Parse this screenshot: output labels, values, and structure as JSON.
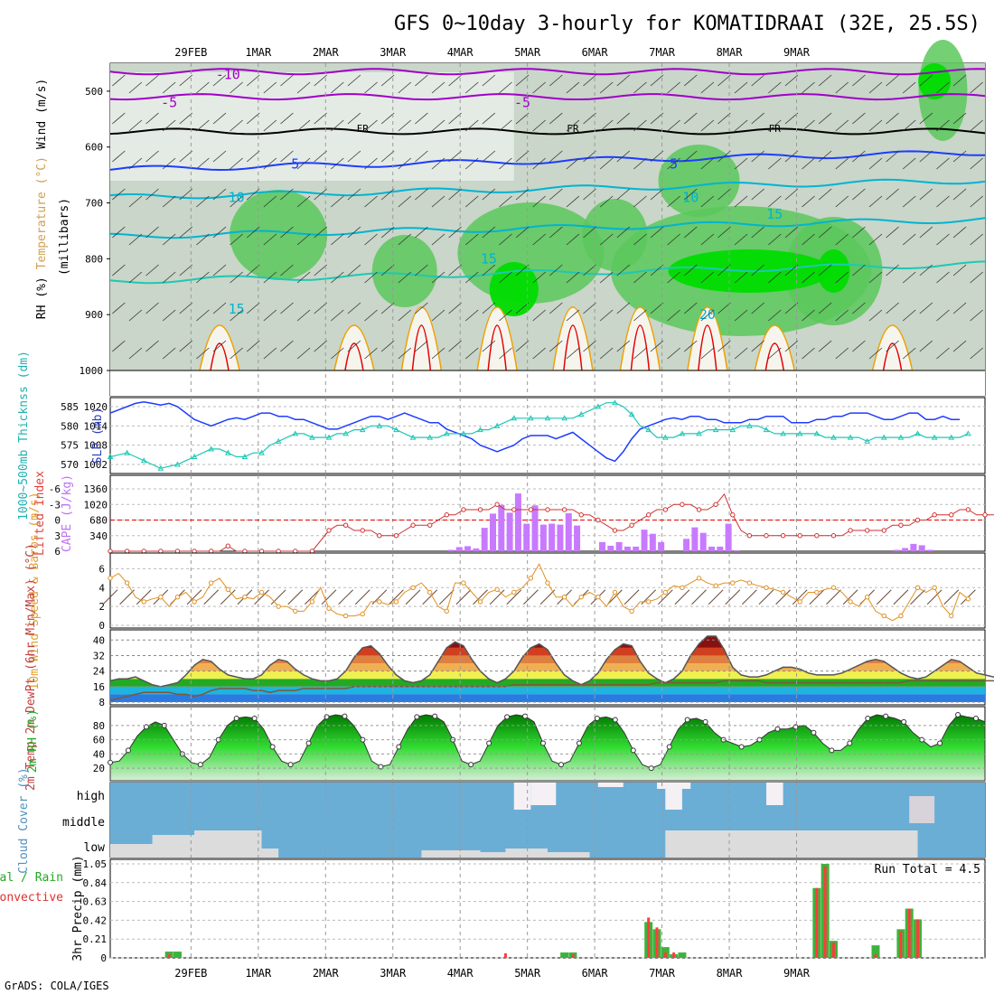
{
  "title": "GFS 0~10day 3-hourly for KOMATIDRAAI (32E, 25.5S)",
  "footer": "GrADS: COLA/IGES",
  "colors": {
    "purple": "#a000c8",
    "black": "#000000",
    "blue": "#1e3cff",
    "cyan": "#00b4d2",
    "teal": "#1ec8b4",
    "green": "#00dc00",
    "green2": "#5ac85a",
    "green3": "#00a000",
    "grey": "#b4beb4",
    "red": "#e60000",
    "orange": "#f0a000",
    "cape": "#c87aff",
    "sky": "#6aaed6",
    "cloudgrey": "#dcdcdc",
    "rain": "#3cb43c",
    "convect": "#ff3c3c",
    "dew": "#b4966e"
  },
  "chart_data": [
    {
      "type": "heatmap",
      "id": "upper-air",
      "ylabel_parts": [
        "RH (%)",
        "Temperature (°C)",
        "Wind (m/s)"
      ],
      "ylabel2": "(millibars)",
      "x_ticks": [
        "29FEB",
        "1MAR",
        "2MAR",
        "3MAR",
        "4MAR",
        "5MAR",
        "6MAR",
        "7MAR",
        "8MAR",
        "9MAR"
      ],
      "y_ticks": [
        500,
        600,
        700,
        800,
        900,
        1000
      ],
      "ylim": [
        450,
        1000
      ],
      "contour_labels": [
        {
          "text": "-10",
          "p": 470,
          "t": 14
        },
        {
          "text": "-5",
          "p": 520,
          "t": 7
        },
        {
          "text": "-5",
          "p": 520,
          "t": 49
        },
        {
          "text": "FR",
          "p": 565,
          "t": 30
        },
        {
          "text": "FR",
          "p": 565,
          "t": 55
        },
        {
          "text": "FR",
          "p": 565,
          "t": 79
        },
        {
          "text": "5",
          "p": 630,
          "t": 22
        },
        {
          "text": "5",
          "p": 630,
          "t": 67
        },
        {
          "text": "10",
          "p": 690,
          "t": 15
        },
        {
          "text": "10",
          "p": 690,
          "t": 69
        },
        {
          "text": "15",
          "p": 720,
          "t": 79
        },
        {
          "text": "15",
          "p": 800,
          "t": 45
        },
        {
          "text": "15",
          "p": 890,
          "t": 15
        },
        {
          "text": "20",
          "p": 900,
          "t": 71
        }
      ]
    },
    {
      "type": "line",
      "id": "thickness-slp",
      "ylabel": "1000~500mb Thicknss (dm)",
      "ylabel2": "SLP (mb)",
      "left_ticks": [
        570,
        575,
        580,
        585
      ],
      "right_ticks": [
        1002,
        1008,
        1014,
        1020
      ],
      "series": [
        {
          "color": "#1e3cff",
          "axis": "right",
          "values": [
            1018,
            1019,
            1020,
            1021,
            1021.5,
            1021,
            1020.5,
            1021,
            1020,
            1018,
            1016,
            1015,
            1014,
            1015,
            1016,
            1016.5,
            1016,
            1017,
            1018,
            1018,
            1017,
            1017,
            1016,
            1016,
            1015,
            1014,
            1013,
            1013,
            1014,
            1015,
            1016,
            1017,
            1017,
            1016,
            1017,
            1018,
            1017,
            1016,
            1015,
            1015,
            1013,
            1012,
            1011,
            1010,
            1008,
            1007,
            1006,
            1007,
            1008,
            1010,
            1011,
            1011,
            1011,
            1010,
            1011,
            1012,
            1010,
            1008,
            1006,
            1004,
            1003,
            1006,
            1010,
            1013,
            1014,
            1015,
            1016,
            1016.5,
            1016,
            1017,
            1017,
            1016,
            1016,
            1015,
            1015,
            1015,
            1016,
            1016,
            1017,
            1017,
            1017,
            1015,
            1015,
            1015,
            1016,
            1016,
            1017,
            1017,
            1018,
            1018,
            1018,
            1017,
            1016,
            1016,
            1017,
            1018,
            1018,
            1016,
            1016,
            1017,
            1016,
            1016
          ]
        },
        {
          "color": "#1ec8b4",
          "axis": "left",
          "values": [
            572,
            572.5,
            573,
            572,
            571,
            570,
            569,
            569.5,
            570,
            571,
            572,
            573,
            574,
            574,
            573,
            572,
            572,
            573,
            573,
            575,
            576,
            577,
            578,
            578,
            577,
            577,
            577,
            578,
            578,
            579,
            579,
            580,
            580,
            580,
            579,
            578,
            577,
            577,
            577,
            577,
            578,
            578,
            578,
            578,
            579,
            579,
            580,
            581,
            582,
            582,
            582,
            582,
            582,
            582,
            582,
            582,
            583,
            584,
            585,
            586,
            586,
            585,
            583,
            580,
            579,
            577,
            577,
            577,
            578,
            578,
            578,
            579,
            579,
            579,
            579,
            580,
            580,
            580,
            579,
            578,
            578,
            578,
            578,
            578,
            578,
            577,
            577,
            577,
            577,
            577,
            576,
            577,
            577,
            577,
            577,
            577,
            578,
            577,
            577,
            577,
            577,
            577,
            578
          ]
        }
      ]
    },
    {
      "type": "bar",
      "id": "cape-li",
      "ylabel": "Lifted Index",
      "ylabel2": "CAPE (J/kg)",
      "left_ticks": [
        6,
        3,
        0,
        -3,
        -6
      ],
      "right_ticks": [
        340,
        680,
        1020,
        1360
      ],
      "li_values": [
        6,
        6,
        6,
        6,
        6,
        6,
        6,
        6,
        6,
        6,
        6,
        6,
        6,
        6,
        5,
        6,
        6,
        6,
        6,
        6,
        6,
        6,
        6,
        6,
        6,
        4,
        2,
        1,
        1,
        2,
        2,
        2,
        3,
        3,
        3,
        2,
        1,
        1,
        1,
        0,
        -1,
        -1,
        -2,
        -2,
        -2,
        -2,
        -3,
        -2,
        -2,
        -2,
        -2,
        -2,
        -2,
        -2,
        -2,
        -2,
        -1,
        -1,
        0,
        1,
        2,
        2,
        1,
        0,
        -1,
        -2,
        -2,
        -3,
        -3,
        -3,
        -2,
        -2,
        -3,
        -5,
        -1,
        2,
        3,
        3,
        3,
        3,
        3,
        3,
        3,
        3,
        3,
        3,
        3,
        3,
        2,
        2,
        2,
        2,
        2,
        1,
        1,
        1,
        0,
        0,
        -1,
        -1,
        -1,
        -2,
        -2,
        -1,
        -1,
        -1,
        -1,
        0,
        0,
        1,
        0
      ],
      "cape_values": [
        0,
        0,
        0,
        0,
        0,
        0,
        0,
        0,
        0,
        0,
        0,
        0,
        0,
        0,
        0,
        0,
        0,
        0,
        0,
        0,
        0,
        0,
        0,
        0,
        0,
        0,
        0,
        0,
        0,
        0,
        0,
        0,
        0,
        0,
        0,
        0,
        0,
        0,
        0,
        0,
        0,
        0,
        0,
        0,
        0,
        0,
        0,
        0,
        0,
        0,
        0,
        0,
        0,
        0,
        0,
        0,
        0,
        0,
        0,
        0,
        0,
        0,
        0,
        0,
        0,
        0,
        0,
        0,
        0,
        0,
        0,
        0,
        0,
        0,
        0,
        0,
        0,
        0,
        0,
        0,
        0,
        0,
        0,
        0,
        0,
        0,
        0,
        0,
        0,
        0,
        0,
        0,
        0,
        0,
        0,
        0,
        0,
        0,
        0,
        0,
        0,
        0,
        0
      ],
      "cape_bars": [
        {
          "t": 40.5,
          "v": 30
        },
        {
          "t": 41.5,
          "v": 90
        },
        {
          "t": 42.5,
          "v": 110
        },
        {
          "t": 43.5,
          "v": 60
        },
        {
          "t": 44.5,
          "v": 510
        },
        {
          "t": 45.5,
          "v": 820
        },
        {
          "t": 46.5,
          "v": 1010
        },
        {
          "t": 47.5,
          "v": 840
        },
        {
          "t": 48.5,
          "v": 1260
        },
        {
          "t": 49.5,
          "v": 600
        },
        {
          "t": 50.5,
          "v": 1000
        },
        {
          "t": 51.5,
          "v": 580
        },
        {
          "t": 52.5,
          "v": 600
        },
        {
          "t": 53.5,
          "v": 580
        },
        {
          "t": 54.5,
          "v": 830
        },
        {
          "t": 55.5,
          "v": 560
        },
        {
          "t": 58.5,
          "v": 200
        },
        {
          "t": 59.5,
          "v": 120
        },
        {
          "t": 60.5,
          "v": 200
        },
        {
          "t": 61.5,
          "v": 100
        },
        {
          "t": 62.5,
          "v": 100
        },
        {
          "t": 63.5,
          "v": 470
        },
        {
          "t": 64.5,
          "v": 380
        },
        {
          "t": 65.5,
          "v": 200
        },
        {
          "t": 68.5,
          "v": 270
        },
        {
          "t": 69.5,
          "v": 520
        },
        {
          "t": 70.5,
          "v": 400
        },
        {
          "t": 71.5,
          "v": 100
        },
        {
          "t": 72.5,
          "v": 100
        },
        {
          "t": 73.5,
          "v": 600
        },
        {
          "t": 74.5,
          "v": 20
        },
        {
          "t": 93.5,
          "v": 30
        },
        {
          "t": 94.5,
          "v": 70
        },
        {
          "t": 95.5,
          "v": 160
        },
        {
          "t": 96.5,
          "v": 130
        },
        {
          "t": 97.5,
          "v": 30
        }
      ]
    },
    {
      "type": "line",
      "id": "wind10m",
      "ylabel": "10m Wind Speed & Barbs (m/s)",
      "left_ticks": [
        0,
        2,
        4,
        6
      ],
      "values": [
        5,
        5.5,
        4.5,
        3,
        2.5,
        2.8,
        3,
        2,
        3,
        3.5,
        2.5,
        3,
        4.5,
        5,
        3.8,
        2.8,
        3,
        2.8,
        3.5,
        3,
        2,
        2,
        1.5,
        1.5,
        2.5,
        4,
        1.8,
        1.2,
        1,
        1,
        1.2,
        2.5,
        2.5,
        2.2,
        2.5,
        3.5,
        4,
        4.5,
        3.5,
        2,
        1.5,
        4.5,
        4.5,
        3.5,
        2.5,
        3.5,
        3.8,
        3,
        3.5,
        4,
        5,
        6.5,
        4.5,
        3,
        3,
        2,
        3,
        3.5,
        3,
        2,
        3.5,
        2,
        1.5,
        2.5,
        2.5,
        2.8,
        3.5,
        4.2,
        4,
        4.5,
        5,
        4.5,
        4.2,
        4.5,
        4.5,
        4.8,
        4.5,
        4.2,
        4,
        3.8,
        3.5,
        3,
        2.5,
        3.5,
        3.5,
        3.8,
        4,
        3.5,
        2.5,
        2,
        3,
        1.5,
        1,
        0.5,
        1,
        2.5,
        4,
        3.5,
        4,
        2,
        1,
        3.5,
        2.8
      ]
    },
    {
      "type": "area",
      "id": "temp2m",
      "ylabel": "2m Temp 2m DewPt (6hr Min/Max) (°C)",
      "left_ticks": [
        8,
        16,
        24,
        32,
        40
      ],
      "temp": [
        19,
        20,
        20,
        21,
        19,
        17,
        16,
        17,
        18,
        22,
        27,
        30,
        29,
        25,
        22,
        21,
        20,
        20,
        22,
        27,
        30,
        29,
        25,
        22,
        20,
        19,
        19,
        20,
        24,
        31,
        36,
        37,
        33,
        27,
        22,
        19,
        18,
        19,
        22,
        29,
        36,
        39,
        37,
        30,
        24,
        20,
        18,
        20,
        24,
        31,
        36,
        38,
        35,
        28,
        22,
        19,
        17,
        19,
        23,
        30,
        35,
        38,
        37,
        29,
        23,
        20,
        18,
        20,
        24,
        32,
        38,
        42,
        42,
        35,
        26,
        22,
        21,
        21,
        22,
        24,
        26,
        26,
        25,
        23,
        22,
        22,
        22,
        23,
        25,
        27,
        29,
        30,
        29,
        26,
        23,
        21,
        20,
        21,
        24,
        27,
        30,
        29,
        26,
        23,
        22,
        21,
        21,
        21,
        23,
        22
      ],
      "dew": [
        9,
        10,
        11,
        12,
        13,
        13,
        13,
        13,
        12,
        12,
        11,
        12,
        14,
        15,
        15,
        15,
        15,
        14,
        14,
        13,
        14,
        14,
        14,
        15,
        15,
        15,
        15,
        15,
        15,
        16,
        16,
        16,
        16,
        16,
        16,
        16,
        16,
        16,
        16,
        16,
        16,
        16,
        16,
        16,
        16,
        16,
        16,
        16,
        17,
        17,
        17,
        17,
        17,
        17,
        17,
        17,
        17,
        17,
        17,
        17,
        17,
        17,
        17,
        17,
        17,
        18,
        18,
        18,
        18,
        18,
        18,
        18,
        18,
        19,
        19,
        19,
        19,
        19,
        18,
        18,
        18,
        18,
        18,
        18,
        18,
        18,
        18,
        18,
        18,
        18,
        18,
        18,
        18,
        18,
        18,
        19,
        19,
        19,
        19,
        19,
        19,
        19,
        19,
        19,
        19,
        19,
        19,
        19,
        19,
        19,
        19
      ]
    },
    {
      "type": "area",
      "id": "rh2m",
      "ylabel": "2m RH (%)",
      "left_ticks": [
        20,
        40,
        60,
        80
      ],
      "values": [
        28,
        30,
        45,
        65,
        78,
        85,
        80,
        60,
        40,
        28,
        25,
        35,
        60,
        80,
        90,
        92,
        90,
        75,
        50,
        30,
        25,
        30,
        55,
        80,
        92,
        95,
        93,
        80,
        60,
        30,
        22,
        25,
        50,
        75,
        92,
        95,
        93,
        85,
        60,
        30,
        25,
        30,
        55,
        80,
        92,
        95,
        93,
        85,
        55,
        30,
        25,
        30,
        55,
        80,
        90,
        92,
        88,
        70,
        45,
        25,
        20,
        25,
        50,
        75,
        88,
        90,
        85,
        70,
        60,
        55,
        50,
        52,
        60,
        70,
        75,
        75,
        78,
        80,
        70,
        55,
        45,
        45,
        55,
        75,
        90,
        95,
        93,
        90,
        85,
        70,
        60,
        50,
        55,
        80,
        95,
        92,
        90,
        85
      ]
    },
    {
      "type": "area",
      "id": "cloud",
      "ylabel": "Cloud Cover (%)",
      "y_labels": [
        "high",
        "middle",
        "low"
      ]
    },
    {
      "type": "bar",
      "id": "precip",
      "ylabel": "3hr Precip (mm)",
      "ylabel2_parts": [
        "Total / Rain",
        "Convective"
      ],
      "left_ticks": [
        0,
        0.21,
        0.42,
        0.63,
        0.84,
        1.05
      ],
      "annotation": "Run Total = 4.5",
      "bars": [
        {
          "t": 7,
          "total": 0.07,
          "conv": 0.04
        },
        {
          "t": 8,
          "total": 0.07,
          "conv": 0
        },
        {
          "t": 47,
          "total": 0,
          "conv": 0.05
        },
        {
          "t": 54,
          "total": 0.06,
          "conv": 0
        },
        {
          "t": 55,
          "total": 0.06,
          "conv": 0.04
        },
        {
          "t": 64,
          "total": 0.4,
          "conv": 0.45
        },
        {
          "t": 65,
          "total": 0.32,
          "conv": 0.34
        },
        {
          "t": 66,
          "total": 0.12,
          "conv": 0.06
        },
        {
          "t": 67,
          "total": 0.04,
          "conv": 0.06
        },
        {
          "t": 68,
          "total": 0.06,
          "conv": 0
        },
        {
          "t": 84,
          "total": 0.78,
          "conv": 0.78
        },
        {
          "t": 85,
          "total": 1.05,
          "conv": 1.02
        },
        {
          "t": 86,
          "total": 0.19,
          "conv": 0.17
        },
        {
          "t": 91,
          "total": 0.14,
          "conv": 0.04
        },
        {
          "t": 94,
          "total": 0.32,
          "conv": 0.3
        },
        {
          "t": 95,
          "total": 0.55,
          "conv": 0.55
        },
        {
          "t": 96,
          "total": 0.43,
          "conv": 0.43
        }
      ]
    }
  ]
}
